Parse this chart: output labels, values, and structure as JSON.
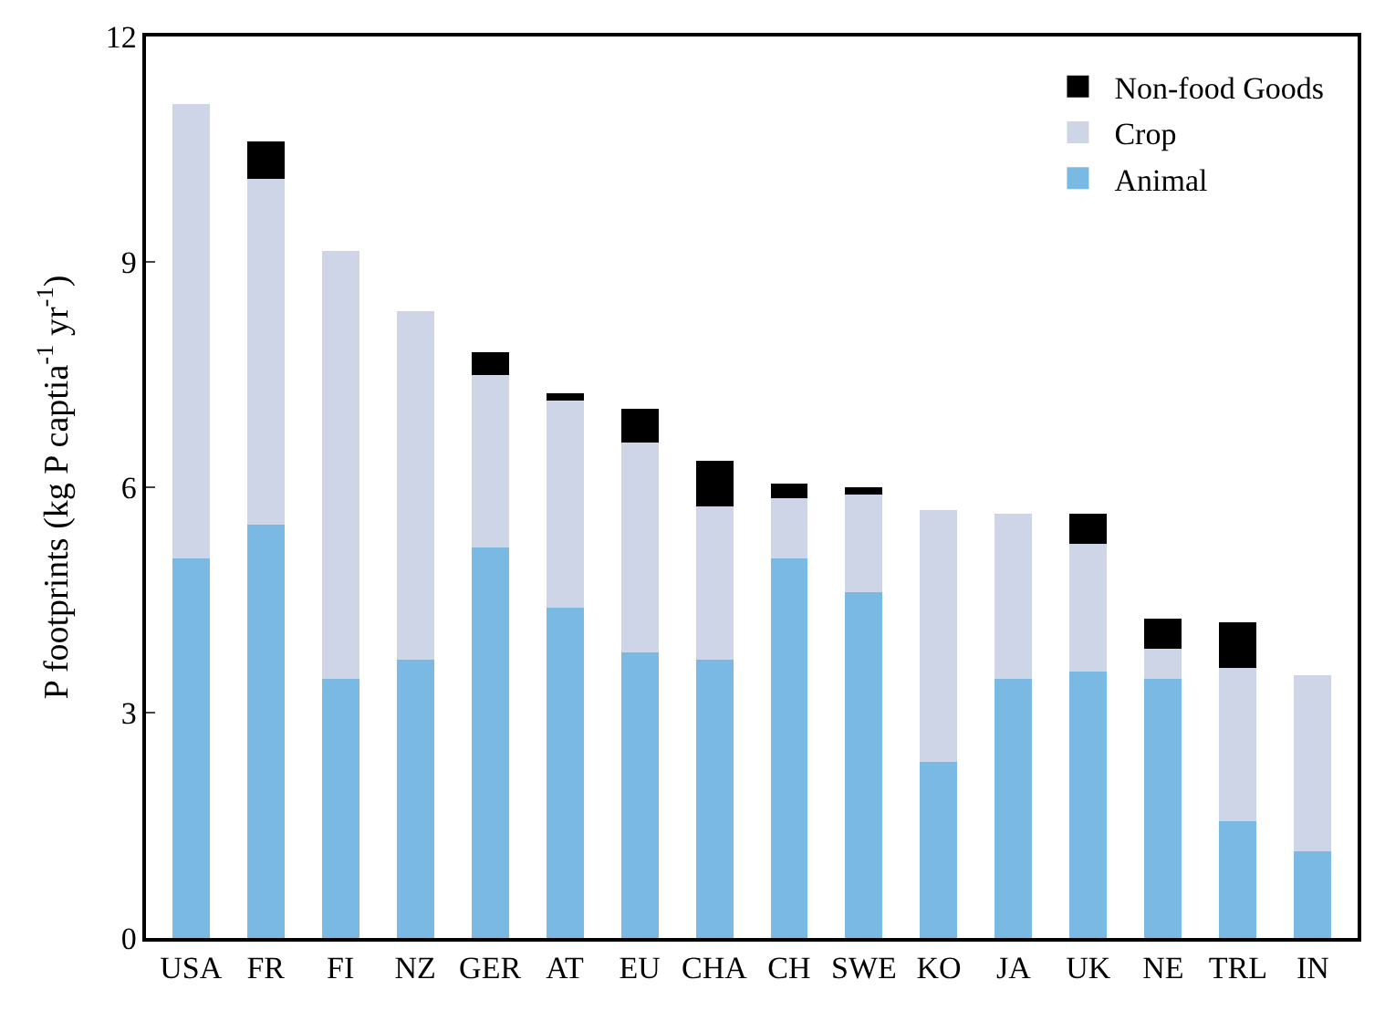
{
  "chart_data": {
    "type": "bar",
    "stacked": true,
    "ylabel": "P footprints (kg P captia$^{-1}$ yr$^{-1}$)",
    "categories": [
      "USA",
      "FR",
      "FI",
      "NZ",
      "GER",
      "AT",
      "EU",
      "CHA",
      "CH",
      "SWE",
      "KO",
      "JA",
      "UK",
      "NE",
      "TRL",
      "IN"
    ],
    "series": [
      {
        "name": "Animal",
        "color": "#7ab9e3",
        "values": [
          5.05,
          5.5,
          3.45,
          3.7,
          5.2,
          4.4,
          3.8,
          3.7,
          5.05,
          4.6,
          2.35,
          3.45,
          3.55,
          3.45,
          1.55,
          1.15
        ]
      },
      {
        "name": "Crop",
        "color": "#ced5e6",
        "values": [
          6.05,
          4.6,
          5.7,
          4.65,
          2.3,
          2.75,
          2.8,
          2.05,
          0.8,
          1.3,
          3.35,
          2.2,
          1.7,
          0.4,
          2.05,
          2.35
        ]
      },
      {
        "name": "Non-food Goods",
        "color": "#000000",
        "values": [
          0,
          0.5,
          0,
          0,
          0.3,
          0.1,
          0.45,
          0.6,
          0.2,
          0.1,
          0,
          0,
          0.4,
          0.4,
          0.6,
          0
        ]
      }
    ],
    "ylim": [
      0,
      12
    ],
    "yticks": [
      0,
      3,
      6,
      9,
      12
    ],
    "legend": "top right"
  }
}
